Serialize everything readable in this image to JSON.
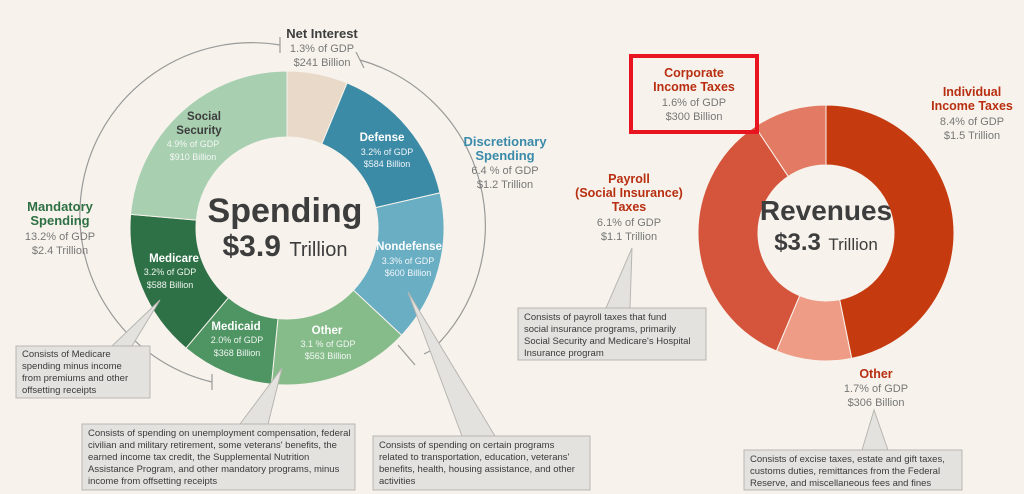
{
  "chart_data": [
    {
      "type": "pie",
      "title": "Spending",
      "total": "$3.9",
      "total_unit": "Trillion",
      "slices": [
        {
          "name": "Net Interest",
          "gdp": "1.3% of GDP",
          "amount": "$241 Billion",
          "value": 241,
          "color": "#e8d9c9"
        },
        {
          "name": "Defense",
          "gdp": "3.2% of GDP",
          "amount": "$584 Billion",
          "value": 584,
          "color": "#3b8aa6"
        },
        {
          "name": "Nondefense",
          "gdp": "3.3% of GDP",
          "amount": "$600 Billion",
          "value": 600,
          "color": "#6aaec4"
        },
        {
          "name": "Other",
          "gdp": "3.1 % of GDP",
          "amount": "$563 Billion",
          "value": 563,
          "color": "#86bc8a"
        },
        {
          "name": "Medicaid",
          "gdp": "2.0% of GDP",
          "amount": "$368 Billion",
          "value": 368,
          "color": "#4f9463"
        },
        {
          "name": "Medicare",
          "gdp": "3.2% of GDP",
          "amount": "$588 Billion",
          "value": 588,
          "color": "#2f7146"
        },
        {
          "name": "Social Security",
          "gdp": "4.9% of GDP",
          "amount": "$910 Billion",
          "value": 910,
          "color": "#a7cfb0"
        }
      ],
      "groups": [
        {
          "name": "Mandatory Spending",
          "gdp": "13.2% of GDP",
          "amount": "$2.4 Trillion",
          "color": "#2e7044"
        },
        {
          "name": "Discretionary Spending",
          "gdp": "6.4 % of GDP",
          "amount": "$1.2 Trillion",
          "color": "#3a8aaa"
        }
      ]
    },
    {
      "type": "pie",
      "title": "Revenues",
      "total": "$3.3",
      "total_unit": "Trillion",
      "slices": [
        {
          "name": "Individual Income Taxes",
          "gdp": "8.4% of GDP",
          "amount": "$1.5 Trillion",
          "value": 1500,
          "color": "#c63a10"
        },
        {
          "name": "Other",
          "gdp": "1.7% of GDP",
          "amount": "$306 Billion",
          "value": 306,
          "color": "#ee9c86"
        },
        {
          "name": "Payroll (Social Insurance) Taxes",
          "gdp": "6.1% of GDP",
          "amount": "$1.1 Trillion",
          "value": 1100,
          "color": "#d5553c"
        },
        {
          "name": "Corporate Income Taxes",
          "gdp": "1.6% of GDP",
          "amount": "$300 Billion",
          "value": 300,
          "color": "#e37a64"
        }
      ]
    }
  ],
  "labels": {
    "spending_title": "Spending",
    "spending_total": "$3.9",
    "spending_unit": "Trillion",
    "revenues_title": "Revenues",
    "revenues_total": "$3.3",
    "revenues_unit": "Trillion",
    "net_interest": {
      "name": "Net Interest",
      "gdp": "1.3% of GDP",
      "amount": "$241 Billion"
    },
    "defense": {
      "name": "Defense",
      "gdp": "3.2% of GDP",
      "amount": "$584 Billion"
    },
    "nondefense": {
      "name": "Nondefense",
      "gdp": "3.3% of GDP",
      "amount": "$600 Billion"
    },
    "other_sp": {
      "name": "Other",
      "gdp": "3.1 % of GDP",
      "amount": "$563 Billion"
    },
    "medicaid": {
      "name": "Medicaid",
      "gdp": "2.0% of GDP",
      "amount": "$368 Billion"
    },
    "medicare": {
      "name": "Medicare",
      "gdp": "3.2% of GDP",
      "amount": "$588 Billion"
    },
    "social_security": {
      "line1": "Social",
      "line2": "Security",
      "gdp": "4.9% of GDP",
      "amount": "$910 Billion"
    },
    "mandatory": {
      "line1": "Mandatory",
      "line2": "Spending",
      "gdp": "13.2% of GDP",
      "amount": "$2.4 Trillion"
    },
    "discretionary": {
      "line1": "Discretionary",
      "line2": "Spending",
      "gdp": "6.4 % of GDP",
      "amount": "$1.2 Trillion"
    },
    "corporate": {
      "line1": "Corporate",
      "line2": "Income Taxes",
      "gdp": "1.6% of GDP",
      "amount": "$300 Billion"
    },
    "individual": {
      "line1": "Individual",
      "line2": "Income Taxes",
      "gdp": "8.4% of GDP",
      "amount": "$1.5 Trillion"
    },
    "payroll": {
      "line1": "Payroll",
      "line2": "(Social Insurance)",
      "line3": "Taxes",
      "gdp": "6.1% of GDP",
      "amount": "$1.1 Trillion"
    },
    "other_rev": {
      "name": "Other",
      "gdp": "1.7% of GDP",
      "amount": "$306 Billion"
    }
  },
  "callouts": {
    "medicare": [
      "Consists of Medicare",
      "spending minus income",
      "from premiums and other",
      "offsetting receipts"
    ],
    "other_mandatory": [
      "Consists of spending on unemployment compensation, federal",
      "civilian and military retirement, some veterans' benefits, the",
      "earned income tax credit, the Supplemental Nutrition",
      "Assistance Program, and other mandatory programs, minus",
      "income from offsetting receipts"
    ],
    "nondefense": [
      "Consists of spending on certain programs",
      "related to transportation, education, veterans'",
      "benefits, health, housing assistance, and other",
      "activities"
    ],
    "payroll": [
      "Consists of payroll taxes that fund",
      "social insurance programs, primarily",
      "Social Security and Medicare's Hospital",
      "Insurance program"
    ],
    "other_rev": [
      "Consists of excise taxes, estate and gift taxes,",
      "customs duties, remittances from the Federal",
      "Reserve, and miscellaneous fees and fines"
    ]
  },
  "colors": {
    "background": "#f7f3ec",
    "highlight_box": "#e8141f",
    "callout_fill": "#e4e2df",
    "callout_stroke": "#b8b6b2",
    "dark_text": "#3d3d3d",
    "gray_text": "#777777",
    "revenue_label": "#b82e10"
  }
}
